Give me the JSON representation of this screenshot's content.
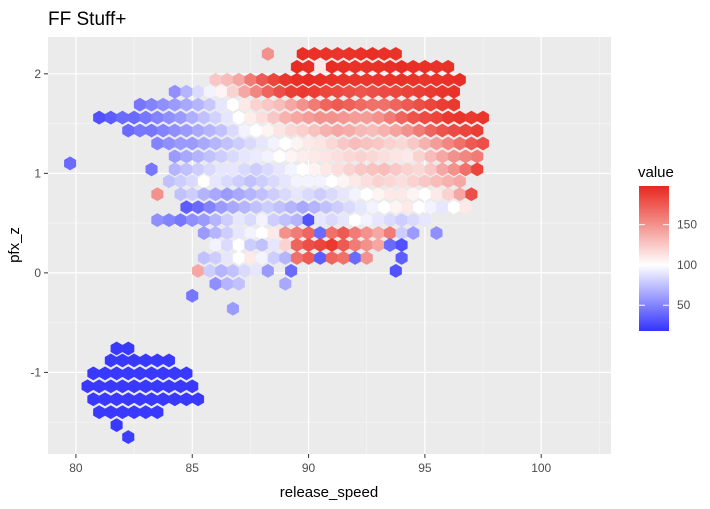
{
  "chart_data": {
    "type": "hexbin",
    "title": "FF Stuff+",
    "xlabel": "release_speed",
    "ylabel": "pfx_z",
    "xlim": [
      78.8,
      103.0
    ],
    "ylim": [
      -1.82,
      2.37
    ],
    "x_ticks": [
      80,
      85,
      90,
      95,
      100
    ],
    "x_tick_labels": [
      "80",
      "85",
      "90",
      "95",
      "100"
    ],
    "y_ticks": [
      -1,
      0,
      1,
      2
    ],
    "y_tick_labels": [
      "-1",
      "0",
      "1",
      "2"
    ],
    "grid": true,
    "legend": {
      "title": "value",
      "position": "right",
      "colorscale": {
        "low": "#3333ff",
        "mid": "#ffffff",
        "high": "#e8281e"
      },
      "range": [
        18,
        198
      ],
      "midpoint": 100,
      "ticks": [
        50,
        100,
        150
      ],
      "tick_labels": [
        "50",
        "100",
        "150"
      ]
    },
    "hex": {
      "dx": 0.5,
      "dy": 0.128
    },
    "rows": [
      {
        "y": 2.2,
        "x0": 88.25,
        "values": [
          150
        ]
      },
      {
        "y": 2.2,
        "x0": 89.75,
        "values": [
          195,
          194,
          193,
          192,
          193,
          194,
          195,
          194,
          193
        ]
      },
      {
        "y": 2.07,
        "x0": 89.5,
        "values": [
          196,
          195,
          110,
          196,
          195,
          194,
          193,
          194,
          195,
          196,
          195,
          194,
          193,
          194
        ]
      },
      {
        "y": 1.94,
        "x0": 86.0,
        "values": [
          125,
          130,
          140,
          160,
          175,
          185,
          192,
          195,
          196,
          195,
          194,
          193,
          192,
          191,
          192,
          193,
          194,
          193,
          192,
          193,
          194,
          195
        ]
      },
      {
        "y": 1.82,
        "x0": 84.25,
        "values": [
          55,
          70,
          85,
          95,
          105,
          120,
          140,
          155,
          170,
          180,
          188,
          190,
          188,
          185,
          183,
          180,
          178,
          180,
          182,
          184,
          186,
          188,
          190,
          192,
          194
        ]
      },
      {
        "y": 1.69,
        "x0": 82.75,
        "values": [
          45,
          50,
          55,
          60,
          65,
          70,
          78,
          90,
          100,
          110,
          120,
          125,
          130,
          140,
          150,
          160,
          170,
          175,
          172,
          168,
          165,
          165,
          170,
          175,
          180,
          185,
          188,
          190
        ]
      },
      {
        "y": 1.56,
        "x0": 81.0,
        "values": [
          30,
          35,
          40,
          40,
          45,
          50,
          55,
          60,
          68,
          75,
          82,
          90,
          100,
          108,
          115,
          125,
          135,
          140,
          145,
          150,
          150,
          148,
          145,
          145,
          150,
          160,
          170,
          178,
          182,
          185,
          190,
          192,
          190,
          192
        ]
      },
      {
        "y": 1.43,
        "x0": 82.25,
        "values": [
          40,
          45,
          45,
          50,
          55,
          60,
          65,
          70,
          75,
          85,
          95,
          100,
          105,
          112,
          118,
          122,
          128,
          135,
          140,
          138,
          132,
          130,
          135,
          142,
          150,
          160,
          170,
          178,
          182,
          185,
          188
        ]
      },
      {
        "y": 1.3,
        "x0": 83.5,
        "values": [
          50,
          55,
          60,
          60,
          65,
          70,
          75,
          80,
          85,
          90,
          95,
          100,
          105,
          110,
          112,
          118,
          125,
          130,
          128,
          125,
          120,
          118,
          125,
          135,
          145,
          155,
          165,
          175,
          180
        ]
      },
      {
        "y": 1.17,
        "x0": 84.25,
        "values": [
          60,
          65,
          70,
          75,
          80,
          85,
          90,
          92,
          95,
          100,
          105,
          108,
          110,
          112,
          115,
          118,
          120,
          118,
          115,
          112,
          110,
          120,
          130,
          140,
          150,
          155,
          160
        ]
      },
      {
        "y": 1.04,
        "x0": 83.25,
        "values": [
          45,
          null,
          70,
          75,
          80,
          85,
          90,
          90,
          85,
          80,
          85,
          90,
          95,
          100,
          105,
          110,
          115,
          120,
          125,
          128,
          130,
          125,
          120,
          118,
          125,
          140,
          150,
          165,
          185
        ]
      },
      {
        "y": 0.92,
        "x0": 84.0,
        "values": [
          75,
          80,
          85,
          100,
          90,
          85,
          80,
          75,
          80,
          85,
          90,
          95,
          95,
          95,
          100,
          105,
          110,
          115,
          120,
          118,
          115,
          120,
          125,
          130,
          135,
          140
        ]
      },
      {
        "y": 0.79,
        "x0": 83.5,
        "values": [
          150,
          null,
          75,
          80,
          70,
          65,
          60,
          65,
          70,
          75,
          80,
          85,
          90,
          85,
          80,
          85,
          90,
          95,
          100,
          105,
          110,
          110,
          105,
          100,
          110,
          120,
          140,
          180
        ]
      },
      {
        "y": 0.66,
        "x0": 84.75,
        "values": [
          35,
          40,
          50,
          60,
          65,
          70,
          75,
          80,
          75,
          70,
          65,
          70,
          75,
          80,
          85,
          90,
          95,
          100,
          105,
          110,
          100,
          95,
          90,
          100,
          110
        ]
      },
      {
        "y": 0.53,
        "x0": 83.5,
        "values": [
          55,
          50,
          45,
          55,
          60,
          70,
          80,
          90,
          85,
          95,
          80,
          75,
          70,
          30,
          90,
          85,
          90,
          100,
          95,
          90,
          85,
          80,
          85,
          90
        ]
      },
      {
        "y": 0.4,
        "x0": 85.5,
        "values": [
          60,
          70,
          80,
          90,
          95,
          100,
          110,
          150,
          160,
          170,
          40,
          165,
          175,
          160,
          150,
          140,
          160,
          80,
          60,
          null,
          55
        ]
      },
      {
        "y": 0.28,
        "x0": 86.0,
        "values": [
          95,
          85,
          100,
          80,
          75,
          90,
          120,
          170,
          180,
          185,
          190,
          175,
          160,
          150,
          140,
          40,
          30
        ]
      },
      {
        "y": 0.15,
        "x0": 85.5,
        "values": [
          75,
          80,
          90,
          100,
          110,
          95,
          80,
          70,
          165,
          175,
          35,
          170,
          165,
          40,
          150,
          null,
          null,
          35
        ]
      },
      {
        "y": 0.02,
        "x0": 85.25,
        "values": [
          140,
          80,
          70,
          75,
          85,
          90,
          60,
          null,
          40,
          null,
          null,
          null,
          null,
          null,
          null,
          null,
          null,
          30
        ]
      },
      {
        "y": -0.11,
        "x0": 85.5,
        "values": [
          null,
          55,
          70,
          75,
          null,
          null,
          null,
          65
        ]
      },
      {
        "y": -0.23,
        "x0": 85.0,
        "values": [
          45
        ]
      },
      {
        "y": -0.36,
        "x0": 86.75,
        "values": [
          60
        ]
      },
      {
        "y": 1.1,
        "x0": 79.75,
        "values": [
          40
        ]
      },
      {
        "y": -0.76,
        "x0": 81.75,
        "values": [
          20,
          20
        ]
      },
      {
        "y": -0.88,
        "x0": 81.5,
        "values": [
          20,
          20,
          20,
          20,
          20,
          20
        ]
      },
      {
        "y": -1.01,
        "x0": 80.75,
        "values": [
          20,
          20,
          20,
          20,
          20,
          20,
          20,
          20,
          20
        ]
      },
      {
        "y": -1.14,
        "x0": 80.5,
        "values": [
          20,
          20,
          20,
          20,
          20,
          20,
          20,
          20,
          20,
          20
        ]
      },
      {
        "y": -1.27,
        "x0": 80.75,
        "values": [
          20,
          20,
          20,
          20,
          20,
          20,
          20,
          20,
          20,
          20
        ]
      },
      {
        "y": -1.4,
        "x0": 81.0,
        "values": [
          20,
          20,
          20,
          20,
          20,
          20
        ]
      },
      {
        "y": -1.53,
        "x0": 81.75,
        "values": [
          20
        ]
      },
      {
        "y": -1.65,
        "x0": 82.25,
        "values": [
          22
        ]
      }
    ]
  }
}
